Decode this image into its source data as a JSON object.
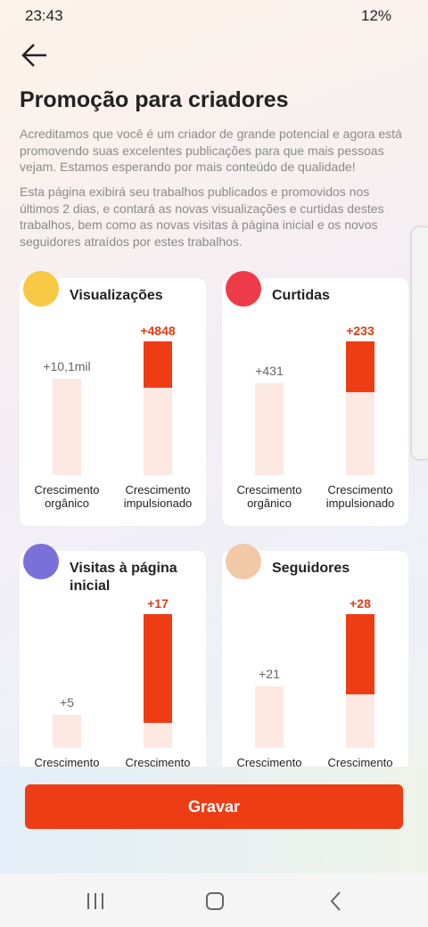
{
  "status": {
    "time": "23:43",
    "battery": "12%"
  },
  "header": {
    "title": "Promoção para criadores"
  },
  "paragraphs": [
    "Acreditamos que você é um criador de grande potencial e agora está promovendo suas excelentes publicações para que mais pessoas vejam. Estamos esperando por mais conteúdo de qualidade!",
    "Esta página exibirá seu trabalhos publicados e promovidos nos últimos 2 dias, e contará as novas visualizações e curtidas destes trabalhos, bem como as novas visitas à página inicial e os novos seguidores atraídos por estes trabalhos."
  ],
  "cards": [
    {
      "title": "Visualizações",
      "organic": "+10,1mil",
      "boosted": "+4848",
      "labels": [
        "Crescimento orgânico",
        "Crescimento impulsionado"
      ]
    },
    {
      "title": "Curtidas",
      "organic": "+431",
      "boosted": "+233",
      "labels": [
        "Crescimento orgânico",
        "Crescimento impulsionado"
      ]
    },
    {
      "title": "Visitas à página inicial",
      "organic": "+5",
      "boosted": "+17",
      "labels": [
        "Crescimento",
        "Crescimento"
      ]
    },
    {
      "title": "Seguidores",
      "organic": "+21",
      "boosted": "+28",
      "labels": [
        "Crescimento",
        "Crescimento"
      ]
    }
  ],
  "button": {
    "label": "Gravar"
  }
}
